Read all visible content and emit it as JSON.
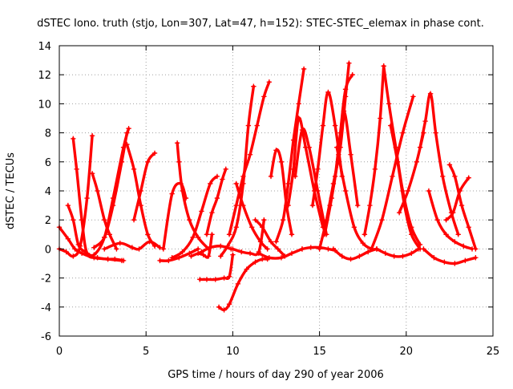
{
  "chart_data": {
    "type": "scatter",
    "title": "dSTEC Iono. truth (stjo, Lon=307, Lat=47, h=152): STEC-STEC_elemax in phase cont.",
    "xlabel": "GPS time / hours of day 290 of year 2006",
    "ylabel": "dSTEC  / TECUs",
    "xlim": [
      0,
      25
    ],
    "ylim": [
      -6,
      14
    ],
    "xticks": [
      0,
      5,
      10,
      15,
      20,
      25
    ],
    "yticks": [
      -6,
      -4,
      -2,
      0,
      2,
      4,
      6,
      8,
      10,
      12,
      14
    ],
    "grid": true,
    "legend": "none",
    "marker": "plus",
    "color": "#ff0000",
    "series": [
      {
        "x": [
          0.0,
          0.5,
          0.9,
          1.3,
          2.0,
          2.8,
          3.6
        ],
        "y": [
          1.5,
          0.7,
          0.0,
          -0.3,
          -0.6,
          -0.7,
          -0.8
        ]
      },
      {
        "x": [
          0.0,
          0.4,
          0.8,
          1.2,
          1.6,
          1.9
        ],
        "y": [
          0.0,
          -0.2,
          -0.5,
          0.2,
          3.5,
          7.8
        ]
      },
      {
        "x": [
          0.5,
          0.8,
          1.1,
          1.5,
          2.0,
          2.6,
          3.1,
          3.7,
          4.0
        ],
        "y": [
          3.0,
          2.0,
          0.3,
          -0.2,
          -0.4,
          0.8,
          3.5,
          7.0,
          8.3
        ]
      },
      {
        "x": [
          0.8,
          1.0,
          1.3,
          1.6,
          2.2,
          2.8,
          3.2,
          3.7
        ],
        "y": [
          7.6,
          5.5,
          2.0,
          -0.3,
          -0.6,
          -0.7,
          -0.7,
          -0.8
        ]
      },
      {
        "x": [
          1.9,
          2.2,
          2.6,
          2.9,
          3.3
        ],
        "y": [
          5.2,
          4.0,
          2.0,
          1.0,
          0.0
        ]
      },
      {
        "x": [
          2.0,
          2.6,
          3.1,
          3.6,
          3.9
        ],
        "y": [
          0.1,
          0.8,
          3.0,
          6.0,
          8.0
        ]
      },
      {
        "x": [
          2.6,
          3.5,
          4.2,
          4.6,
          5.2,
          5.8
        ],
        "y": [
          0.0,
          0.4,
          0.1,
          0.0,
          0.5,
          0.1
        ]
      },
      {
        "x": [
          3.9,
          4.3,
          4.7,
          5.1,
          5.5
        ],
        "y": [
          7.2,
          5.5,
          3.0,
          1.0,
          0.2
        ]
      },
      {
        "x": [
          4.3,
          4.7,
          5.1,
          5.5
        ],
        "y": [
          2.0,
          4.0,
          6.0,
          6.6
        ]
      },
      {
        "x": [
          5.8,
          6.3,
          6.9,
          7.5,
          8.0
        ],
        "y": [
          -0.8,
          -0.8,
          -0.6,
          -0.3,
          0.0
        ]
      },
      {
        "x": [
          6.0,
          6.5,
          7.0,
          7.3
        ],
        "y": [
          0.0,
          3.8,
          4.5,
          3.5
        ]
      },
      {
        "x": [
          6.8,
          6.9,
          7.1,
          7.5,
          8.0,
          8.6
        ],
        "y": [
          7.3,
          6.0,
          4.0,
          2.0,
          0.8,
          0.0
        ]
      },
      {
        "x": [
          6.5,
          7.1,
          7.7,
          8.2,
          8.7,
          9.1
        ],
        "y": [
          -0.6,
          -0.2,
          0.8,
          2.6,
          4.5,
          5.0
        ]
      },
      {
        "x": [
          7.6,
          8.2,
          8.7,
          9.3,
          9.9
        ],
        "y": [
          -0.5,
          -0.2,
          0.1,
          0.2,
          0.0
        ]
      },
      {
        "x": [
          8.5,
          8.8,
          9.1,
          9.4,
          9.6
        ],
        "y": [
          1.0,
          2.5,
          3.5,
          4.8,
          5.5
        ]
      },
      {
        "x": [
          8.0,
          8.3,
          8.6,
          8.8
        ],
        "y": [
          -0.3,
          -0.4,
          -0.5,
          1.0
        ]
      },
      {
        "x": [
          8.1,
          8.5,
          9.0,
          9.5,
          9.8,
          10.0
        ],
        "y": [
          -2.1,
          -2.1,
          -2.1,
          -2.0,
          -1.9,
          -0.4
        ]
      },
      {
        "x": [
          9.2,
          9.5,
          9.8,
          10.3,
          10.8,
          11.3,
          11.7,
          12.0
        ],
        "y": [
          -4.0,
          -4.2,
          -3.8,
          -2.4,
          -1.4,
          -0.9,
          -0.7,
          -0.7
        ]
      },
      {
        "x": [
          9.3,
          9.7,
          10.2,
          10.6,
          10.9,
          11.2
        ],
        "y": [
          -0.5,
          0.2,
          1.5,
          4.5,
          8.5,
          11.2
        ]
      },
      {
        "x": [
          9.8,
          10.2,
          10.6,
          11.0,
          11.4,
          11.8,
          12.1
        ],
        "y": [
          1.0,
          3.0,
          5.0,
          6.5,
          8.5,
          10.5,
          11.5
        ]
      },
      {
        "x": [
          10.0,
          10.5,
          11.0,
          11.5,
          11.8
        ],
        "y": [
          0.0,
          -0.2,
          -0.3,
          -0.2,
          2.0
        ]
      },
      {
        "x": [
          10.2,
          10.6,
          11.1,
          11.6,
          12.0
        ],
        "y": [
          4.5,
          3.0,
          1.5,
          0.5,
          0.0
        ]
      },
      {
        "x": [
          11.3,
          11.7,
          12.2,
          12.6,
          13.0
        ],
        "y": [
          2.0,
          1.5,
          0.5,
          0.0,
          -0.5
        ]
      },
      {
        "x": [
          11.5,
          12.1,
          12.8,
          13.4,
          14.0
        ],
        "y": [
          -0.3,
          -0.6,
          -0.6,
          -0.3,
          0.0
        ]
      },
      {
        "x": [
          12.2,
          12.5,
          12.8,
          13.1,
          13.4
        ],
        "y": [
          5.0,
          6.8,
          6.0,
          3.0,
          1.0
        ]
      },
      {
        "x": [
          12.5,
          12.9,
          13.2,
          13.5,
          13.8,
          14.1
        ],
        "y": [
          0.5,
          2.0,
          4.5,
          7.5,
          10.0,
          12.4
        ]
      },
      {
        "x": [
          13.2,
          13.5,
          13.8,
          14.2,
          14.7,
          15.2
        ],
        "y": [
          3.0,
          5.5,
          9.0,
          7.0,
          4.0,
          1.5
        ]
      },
      {
        "x": [
          13.6,
          14.0,
          14.4,
          14.9,
          15.4
        ],
        "y": [
          5.0,
          8.2,
          7.0,
          4.0,
          1.0
        ]
      },
      {
        "x": [
          14.0,
          14.5,
          15.0,
          15.5,
          15.9
        ],
        "y": [
          0.0,
          0.1,
          0.1,
          0.0,
          -0.1
        ]
      },
      {
        "x": [
          14.6,
          14.9,
          15.2,
          15.5,
          15.9,
          16.3
        ],
        "y": [
          3.0,
          5.5,
          8.5,
          10.8,
          8.5,
          5.0
        ]
      },
      {
        "x": [
          15.0,
          15.4,
          15.8,
          16.2,
          16.5,
          16.7
        ],
        "y": [
          0.0,
          2.0,
          4.5,
          7.0,
          10.5,
          12.8
        ]
      },
      {
        "x": [
          15.3,
          15.7,
          16.1,
          16.4,
          16.8,
          17.2
        ],
        "y": [
          1.0,
          3.5,
          6.5,
          9.5,
          6.5,
          3.0
        ]
      },
      {
        "x": [
          15.6,
          15.9,
          16.2,
          16.5,
          16.9
        ],
        "y": [
          3.0,
          5.0,
          8.0,
          11.0,
          12.0
        ]
      },
      {
        "x": [
          16.0,
          16.5,
          17.0,
          17.5,
          18.0,
          18.3
        ],
        "y": [
          7.0,
          4.0,
          1.5,
          0.4,
          0.0,
          0.0
        ]
      },
      {
        "x": [
          15.8,
          16.3,
          16.8,
          17.3,
          17.8,
          18.3
        ],
        "y": [
          0.0,
          -0.5,
          -0.7,
          -0.5,
          -0.2,
          0.0
        ]
      },
      {
        "x": [
          17.6,
          17.9,
          18.2,
          18.5,
          18.7
        ],
        "y": [
          1.0,
          3.0,
          5.5,
          9.0,
          12.6
        ]
      },
      {
        "x": [
          18.0,
          18.6,
          19.2,
          19.8,
          20.4
        ],
        "y": [
          0.0,
          2.0,
          5.0,
          8.0,
          10.5
        ]
      },
      {
        "x": [
          18.7,
          19.0,
          19.4,
          19.8,
          20.3,
          20.8
        ],
        "y": [
          12.6,
          10.0,
          7.0,
          4.0,
          1.5,
          0.3
        ]
      },
      {
        "x": [
          18.3,
          18.8,
          19.3,
          19.8,
          20.3,
          20.7
        ],
        "y": [
          0.0,
          -0.3,
          -0.5,
          -0.5,
          -0.3,
          0.0
        ]
      },
      {
        "x": [
          19.1,
          19.5,
          19.9,
          20.3,
          20.8
        ],
        "y": [
          8.5,
          6.0,
          3.0,
          1.0,
          0.0
        ]
      },
      {
        "x": [
          19.6,
          20.1,
          20.6,
          21.0
        ],
        "y": [
          2.5,
          4.0,
          6.0,
          8.0
        ]
      },
      {
        "x": [
          20.8,
          21.1,
          21.4,
          21.7,
          22.1,
          22.6,
          23.0
        ],
        "y": [
          7.0,
          8.8,
          10.7,
          8.0,
          5.0,
          2.5,
          1.0
        ]
      },
      {
        "x": [
          21.3,
          21.8,
          22.3,
          22.8,
          23.3,
          23.8
        ],
        "y": [
          4.0,
          2.0,
          1.0,
          0.5,
          0.2,
          0.0
        ]
      },
      {
        "x": [
          21.0,
          21.6,
          22.2,
          22.8,
          23.4,
          24.0
        ],
        "y": [
          0.0,
          -0.6,
          -0.9,
          -1.0,
          -0.8,
          -0.6
        ]
      },
      {
        "x": [
          22.5,
          22.8,
          23.2,
          23.6,
          24.0
        ],
        "y": [
          5.8,
          5.0,
          3.0,
          1.5,
          0.0
        ]
      },
      {
        "x": [
          22.3,
          22.7,
          23.1,
          23.6
        ],
        "y": [
          2.0,
          2.5,
          4.0,
          4.9
        ]
      }
    ]
  }
}
